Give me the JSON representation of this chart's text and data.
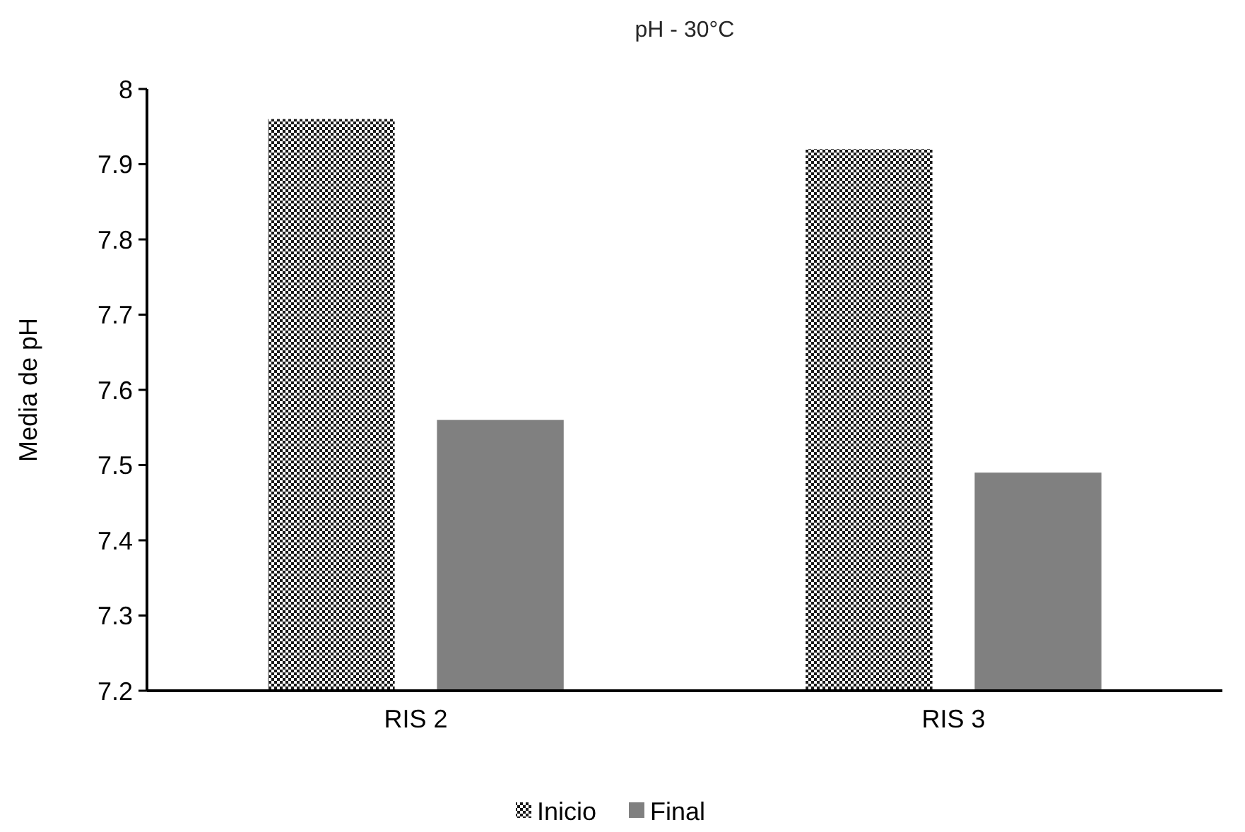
{
  "chart_data": {
    "type": "bar",
    "title": "pH - 30°C",
    "ylabel": "Media de pH",
    "categories": [
      "RIS 2",
      "RIS 3"
    ],
    "series": [
      {
        "name": "Inicio",
        "color": "#1a1a1a",
        "values": [
          7.96,
          7.92
        ]
      },
      {
        "name": "Final",
        "color": "#808080",
        "values": [
          7.56,
          7.49
        ]
      }
    ],
    "ylim": [
      7.2,
      8
    ],
    "yticks": [
      {
        "value": 7.2,
        "label": "7.2"
      },
      {
        "value": 7.3,
        "label": "7.3"
      },
      {
        "value": 7.4,
        "label": "7.4"
      },
      {
        "value": 7.5,
        "label": "7.5"
      },
      {
        "value": 7.6,
        "label": "7.6"
      },
      {
        "value": 7.7,
        "label": "7.7"
      },
      {
        "value": 7.8,
        "label": "7.8"
      },
      {
        "value": 7.9,
        "label": "7.9"
      },
      {
        "value": 8,
        "label": "8"
      }
    ],
    "grid": false,
    "legend": "bottom"
  }
}
